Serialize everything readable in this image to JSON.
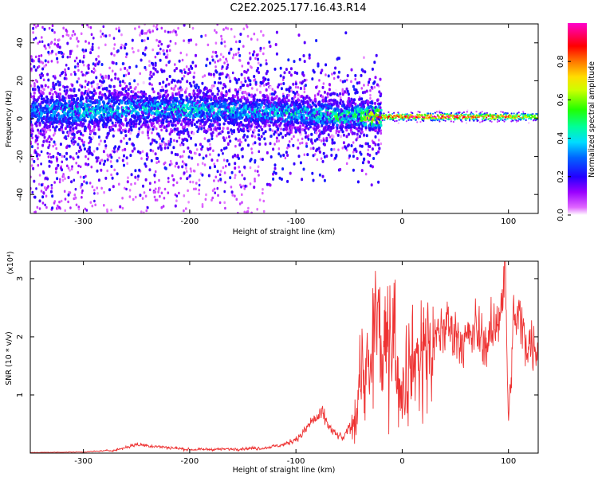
{
  "title": "C2E2.2025.177.16.43.R14",
  "colorbar": {
    "label": "Normalized spectral amplitude",
    "ticks": [
      "0.0",
      "0.2",
      "0.4",
      "0.6",
      "0.8"
    ],
    "tick_values": [
      0.0,
      0.2,
      0.4,
      0.6,
      0.8
    ],
    "range": [
      0,
      1
    ],
    "colormap": [
      "#ffffff",
      "#cc00ff",
      "#7a00ff",
      "#0000ff",
      "#00aaff",
      "#00ffff",
      "#00ff66",
      "#33ff00",
      "#ffff00",
      "#ff9900",
      "#ff0000",
      "#ff0066",
      "#ff00cc"
    ]
  },
  "chart_data": [
    {
      "type": "heatmap",
      "title": "C2E2.2025.177.16.43.R14",
      "xlabel": "Height of straight line (km)",
      "ylabel": "Frequency (Hz)",
      "xlim": [
        -350,
        128
      ],
      "ylim": [
        -50,
        50
      ],
      "xticks": [
        -300,
        -200,
        -100,
        0,
        100
      ],
      "yticks": [
        -40,
        -20,
        0,
        20,
        40
      ],
      "ridge": {
        "x": [
          -350,
          -300,
          -250,
          -200,
          -150,
          -100,
          -70,
          -60,
          -45,
          -35,
          -20,
          0,
          50,
          100,
          128
        ],
        "y_center": [
          4,
          4,
          5,
          5,
          4,
          3,
          2,
          1,
          2,
          1,
          1,
          1,
          1,
          1,
          1
        ],
        "peak_amplitude": [
          0.35,
          0.45,
          0.4,
          0.45,
          0.4,
          0.45,
          0.5,
          0.55,
          0.5,
          0.7,
          0.85,
          0.95,
          1.0,
          0.85,
          0.75
        ]
      }
    },
    {
      "type": "line",
      "xlabel": "Height of straight line (km)",
      "ylabel": "SNR (10 * v/v)",
      "y_multiplier": "(x10⁴)",
      "xlim": [
        -350,
        128
      ],
      "ylim": [
        0,
        3.3
      ],
      "xticks": [
        -300,
        -200,
        -100,
        0,
        100
      ],
      "yticks": [
        1,
        2,
        3
      ],
      "color": "#ee3333",
      "series": [
        {
          "x": [
            -350,
            -300,
            -270,
            -250,
            -200,
            -160,
            -130,
            -110,
            -95,
            -85,
            -75,
            -65,
            -55,
            -45,
            -38,
            -30,
            -25,
            -20,
            -15,
            -10,
            -5,
            0,
            5,
            10,
            20,
            30,
            40,
            50,
            60,
            70,
            80,
            85,
            90,
            95,
            97,
            100,
            105,
            110,
            115,
            120,
            128
          ],
          "y": [
            0.01,
            0.02,
            0.05,
            0.15,
            0.06,
            0.07,
            0.09,
            0.15,
            0.3,
            0.55,
            0.65,
            0.35,
            0.25,
            0.6,
            1.6,
            1.2,
            2.5,
            1.7,
            1.7,
            2.7,
            1.5,
            1.3,
            1.6,
            1.6,
            1.8,
            1.9,
            2.2,
            2.1,
            1.9,
            2.1,
            1.9,
            2.0,
            2.4,
            2.8,
            3.2,
            0.5,
            2.3,
            2.3,
            2.0,
            1.9,
            1.85
          ]
        }
      ]
    }
  ]
}
